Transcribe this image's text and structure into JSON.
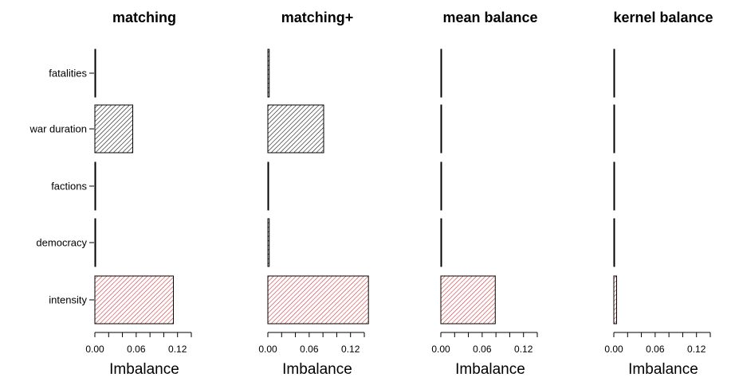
{
  "chart_data": {
    "type": "bar",
    "orientation": "horizontal",
    "categories": [
      "fatalities",
      "war duration",
      "factions",
      "democracy",
      "intensity"
    ],
    "panels": [
      {
        "title": "matching",
        "xlabel": "Imbalance",
        "xlim": [
          0,
          0.13
        ],
        "xticks": [
          0.0,
          0.06,
          0.12
        ],
        "xtick_labels": [
          "0.00",
          "0.06",
          "0.12"
        ],
        "values": [
          0.0,
          0.055,
          0.001,
          0.0005,
          0.114
        ],
        "bar_colors": [
          "#000000",
          "#000000",
          "#000000",
          "#000000",
          "#d62728"
        ]
      },
      {
        "title": "matching+",
        "xlabel": "Imbalance",
        "xlim": [
          0,
          0.13
        ],
        "xticks": [
          0.0,
          0.06,
          0.12
        ],
        "xtick_labels": [
          "0.00",
          "0.06",
          "0.12"
        ],
        "values": [
          0.002,
          0.081,
          0.0,
          0.002,
          0.146
        ],
        "bar_colors": [
          "#000000",
          "#000000",
          "#000000",
          "#000000",
          "#d62728"
        ]
      },
      {
        "title": "mean balance",
        "xlabel": "Imbalance",
        "xlim": [
          0,
          0.13
        ],
        "xticks": [
          0.0,
          0.06,
          0.12
        ],
        "xtick_labels": [
          "0.00",
          "0.06",
          "0.12"
        ],
        "values": [
          0.0,
          0.0,
          0.0,
          0.0,
          0.079
        ],
        "bar_colors": [
          "#000000",
          "#000000",
          "#000000",
          "#000000",
          "#d62728"
        ]
      },
      {
        "title": "kernel balance",
        "xlabel": "Imbalance",
        "xlim": [
          0,
          0.13
        ],
        "xticks": [
          0.0,
          0.06,
          0.12
        ],
        "xtick_labels": [
          "0.00",
          "0.06",
          "0.12"
        ],
        "values": [
          0.0005,
          0.0,
          0.0,
          0.0,
          0.004
        ],
        "bar_colors": [
          "#000000",
          "#000000",
          "#000000",
          "#000000",
          "#d62728"
        ]
      }
    ],
    "pattern": "diagonal-hatch",
    "grid": false,
    "legend": "none"
  }
}
